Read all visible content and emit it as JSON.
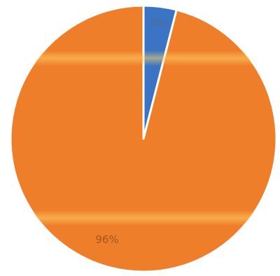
{
  "chart_data": {
    "type": "pie",
    "title": "",
    "slices": [
      {
        "label": "4%",
        "value": 4,
        "color": "#3b74c4"
      },
      {
        "label": "96%",
        "value": 96,
        "color": "#ef7e2a"
      }
    ],
    "start_angle_deg": 0,
    "legend": "none"
  }
}
